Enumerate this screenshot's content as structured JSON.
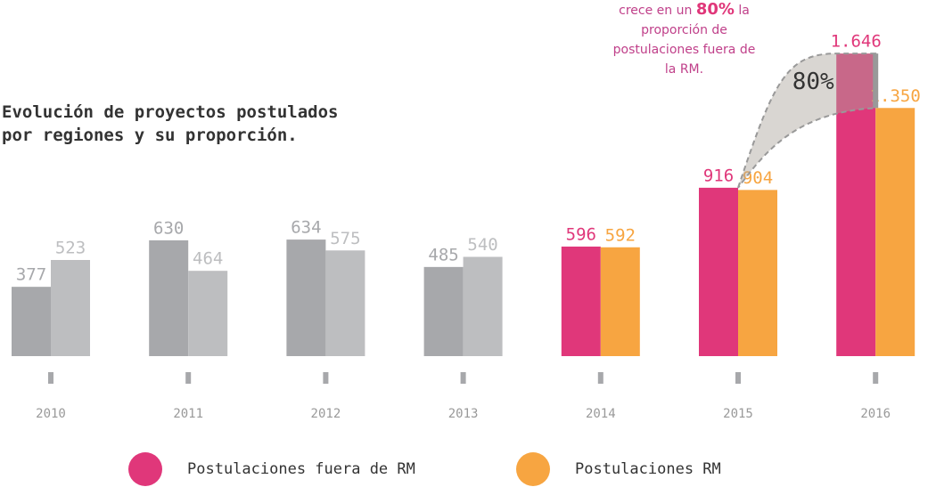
{
  "chart_data": {
    "type": "bar",
    "title": "Evolución de proyectos postulados por regiones y su proporción.",
    "annotation": [
      "crece en un ",
      "80%",
      " la proporción de postulaciones fuera de la RM."
    ],
    "band_label": "80%",
    "categories": [
      "2010",
      "2011",
      "2012",
      "2013",
      "2014",
      "2015",
      "2016"
    ],
    "series": [
      {
        "name": "Postulaciones fuera de RM",
        "color": "#e0377a",
        "colors": [
          "#a7a8ab",
          "#a7a8ab",
          "#a7a8ab",
          "#a7a8ab",
          "#e0377a",
          "#e0377a",
          "#e0377a"
        ],
        "values": [
          377,
          630,
          634,
          485,
          596,
          916,
          1646
        ],
        "value_labels": [
          "377",
          "630",
          "634",
          "485",
          "596",
          "916",
          "1.646"
        ]
      },
      {
        "name": "Postulaciones RM",
        "color": "#f7a541",
        "colors": [
          "#bdbec0",
          "#bdbec0",
          "#bdbec0",
          "#bdbec0",
          "#f7a541",
          "#f7a541",
          "#f7a541"
        ],
        "values": [
          523,
          464,
          575,
          540,
          592,
          904,
          1350
        ],
        "value_labels": [
          "523",
          "464",
          "575",
          "540",
          "592",
          "904",
          "1.350"
        ]
      }
    ],
    "ylim": [
      0,
      1700
    ]
  }
}
